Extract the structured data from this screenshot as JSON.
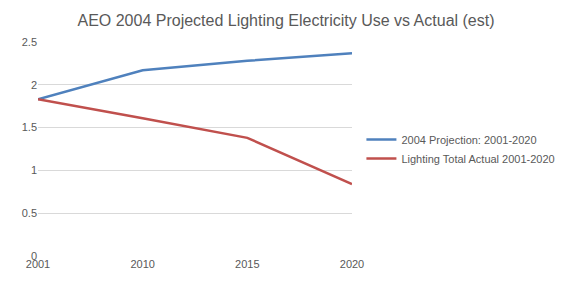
{
  "chart_data": {
    "type": "line",
    "title": "AEO 2004 Projected Lighting Electricity Use vs Actual (est)",
    "categories": [
      "2001",
      "2010",
      "2015",
      "2020"
    ],
    "series": [
      {
        "name": "2004 Projection: 2001-2020",
        "color": "#4f81bd",
        "values": [
          1.83,
          2.17,
          2.28,
          2.37
        ]
      },
      {
        "name": "Lighting Total Actual 2001-2020",
        "color": "#c0504d",
        "values": [
          1.83,
          1.61,
          1.38,
          0.84
        ]
      }
    ],
    "ylim": [
      0,
      2.5
    ],
    "yticks": [
      0,
      0.5,
      1,
      1.5,
      2,
      2.5
    ],
    "grid": true,
    "legend": "right"
  }
}
